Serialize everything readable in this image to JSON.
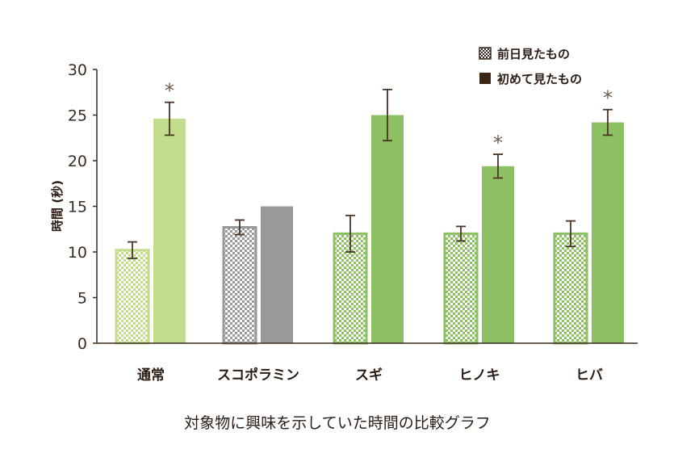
{
  "chart_data": {
    "type": "bar",
    "title": "",
    "caption": "対象物に興味を示していた時間の比較グラフ",
    "ylabel": "時間 (秒)",
    "xlabel": "",
    "ylim": [
      0,
      30
    ],
    "yticks": [
      "0",
      "5",
      "10",
      "15",
      "20",
      "25",
      "30"
    ],
    "grid": false,
    "legend_position": "top-right",
    "categories": [
      "通常",
      "スコポラミン",
      "スギ",
      "ヒノキ",
      "ヒバ"
    ],
    "category_colors": [
      "#c1dc8a",
      "#999999",
      "#8cc063",
      "#8cc063",
      "#8cc063"
    ],
    "axis_color": "#3a2a1e",
    "error_color": "#4a3426",
    "series": [
      {
        "name": "前日見たもの",
        "pattern": "checkered",
        "values": [
          10.2,
          12.7,
          12.0,
          12.0,
          12.0
        ],
        "errors": [
          0.9,
          0.8,
          2.0,
          0.8,
          1.4
        ],
        "significant": [
          false,
          false,
          false,
          false,
          false
        ]
      },
      {
        "name": "初めて見たもの",
        "pattern": "solid",
        "values": [
          24.6,
          15.0,
          25.0,
          19.4,
          24.2
        ],
        "errors": [
          1.8,
          0,
          2.8,
          1.3,
          1.4
        ],
        "significant": [
          true,
          false,
          false,
          true,
          true
        ]
      }
    ],
    "significance_mark": "*"
  }
}
